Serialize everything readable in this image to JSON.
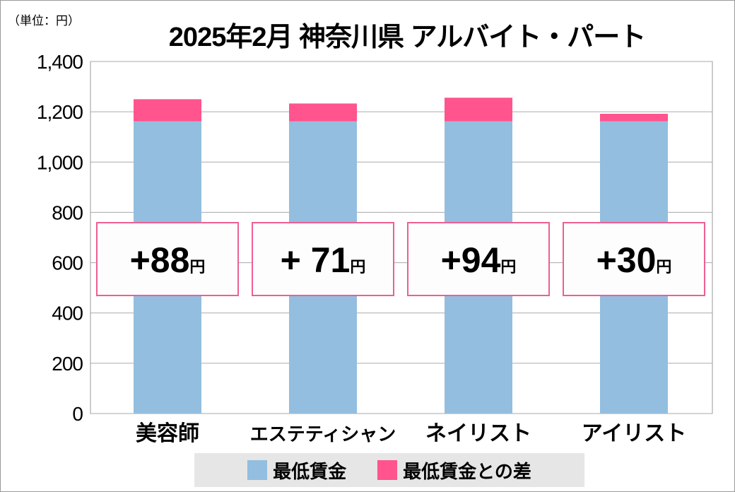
{
  "chart_data": {
    "type": "bar",
    "stacked": true,
    "title": "2025年2月 神奈川県 アルバイト・パート",
    "unit_label": "（単位：円）",
    "categories": [
      "美容師",
      "エステティシャン",
      "ネイリスト",
      "アイリスト"
    ],
    "series": [
      {
        "name": "最低賃金",
        "values": [
          1162,
          1162,
          1162,
          1162
        ],
        "color": "#93bedf"
      },
      {
        "name": "最低賃金との差",
        "values": [
          88,
          71,
          94,
          30
        ],
        "color": "#ff548d"
      }
    ],
    "annotations": [
      "+88円",
      "+71円",
      "+94円",
      "+30円"
    ],
    "annotation_parts": [
      {
        "n": "+88",
        "u": "円"
      },
      {
        "n": "+ 71",
        "u": "円"
      },
      {
        "n": "+94",
        "u": "円"
      },
      {
        "n": "+30",
        "u": "円"
      }
    ],
    "ylim": [
      0,
      1400
    ],
    "yticks": [
      0,
      200,
      400,
      600,
      800,
      1000,
      1200,
      1400
    ],
    "ytick_labels": [
      "0",
      "200",
      "400",
      "600",
      "800",
      "1,000",
      "1,200",
      "1,400"
    ],
    "grid": true,
    "legend_position": "bottom"
  }
}
